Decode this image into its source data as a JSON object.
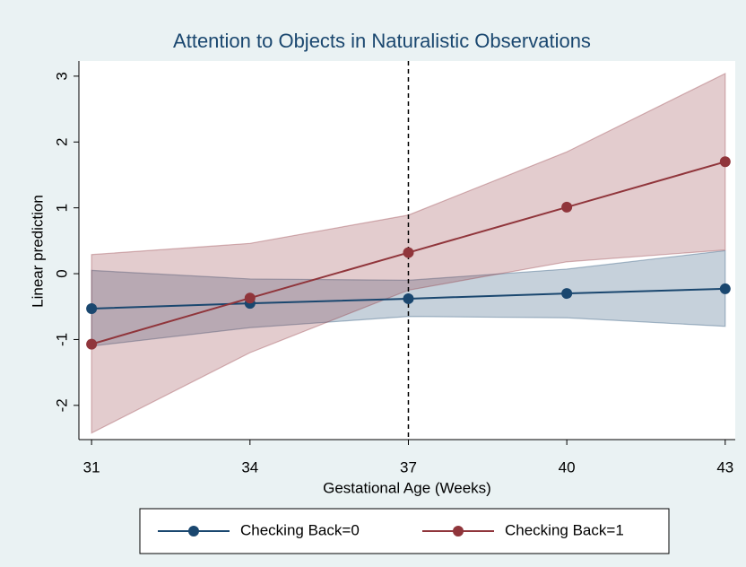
{
  "chart_data": {
    "type": "line",
    "title": "Attention to Objects in Naturalistic Observations",
    "x_label": "Gestational Age (Weeks)",
    "y_label": "Linear prediction",
    "x": [
      31,
      34,
      37,
      40,
      43
    ],
    "series": [
      {
        "name": "Checking Back=0",
        "color": "#1a476f",
        "values": [
          -0.53,
          -0.45,
          -0.38,
          -0.3,
          -0.23
        ],
        "ci_lower": [
          -1.1,
          -0.82,
          -0.65,
          -0.67,
          -0.8
        ],
        "ci_upper": [
          0.05,
          -0.08,
          -0.1,
          0.07,
          0.35
        ]
      },
      {
        "name": "Checking Back=1",
        "color": "#90353b",
        "values": [
          -1.07,
          -0.37,
          0.32,
          1.01,
          1.7
        ],
        "ci_lower": [
          -2.42,
          -1.2,
          -0.25,
          0.18,
          0.36
        ],
        "ci_upper": [
          0.29,
          0.46,
          0.89,
          1.85,
          3.04
        ]
      }
    ],
    "xlim": [
      30.76,
      43.19
    ],
    "ylim": [
      -2.52,
      3.23
    ],
    "xticks": [
      31,
      34,
      37,
      40,
      43
    ],
    "yticks": [
      -2,
      -1,
      0,
      1,
      2,
      3
    ],
    "xline": 37,
    "grid": false,
    "legend": "bottom"
  }
}
